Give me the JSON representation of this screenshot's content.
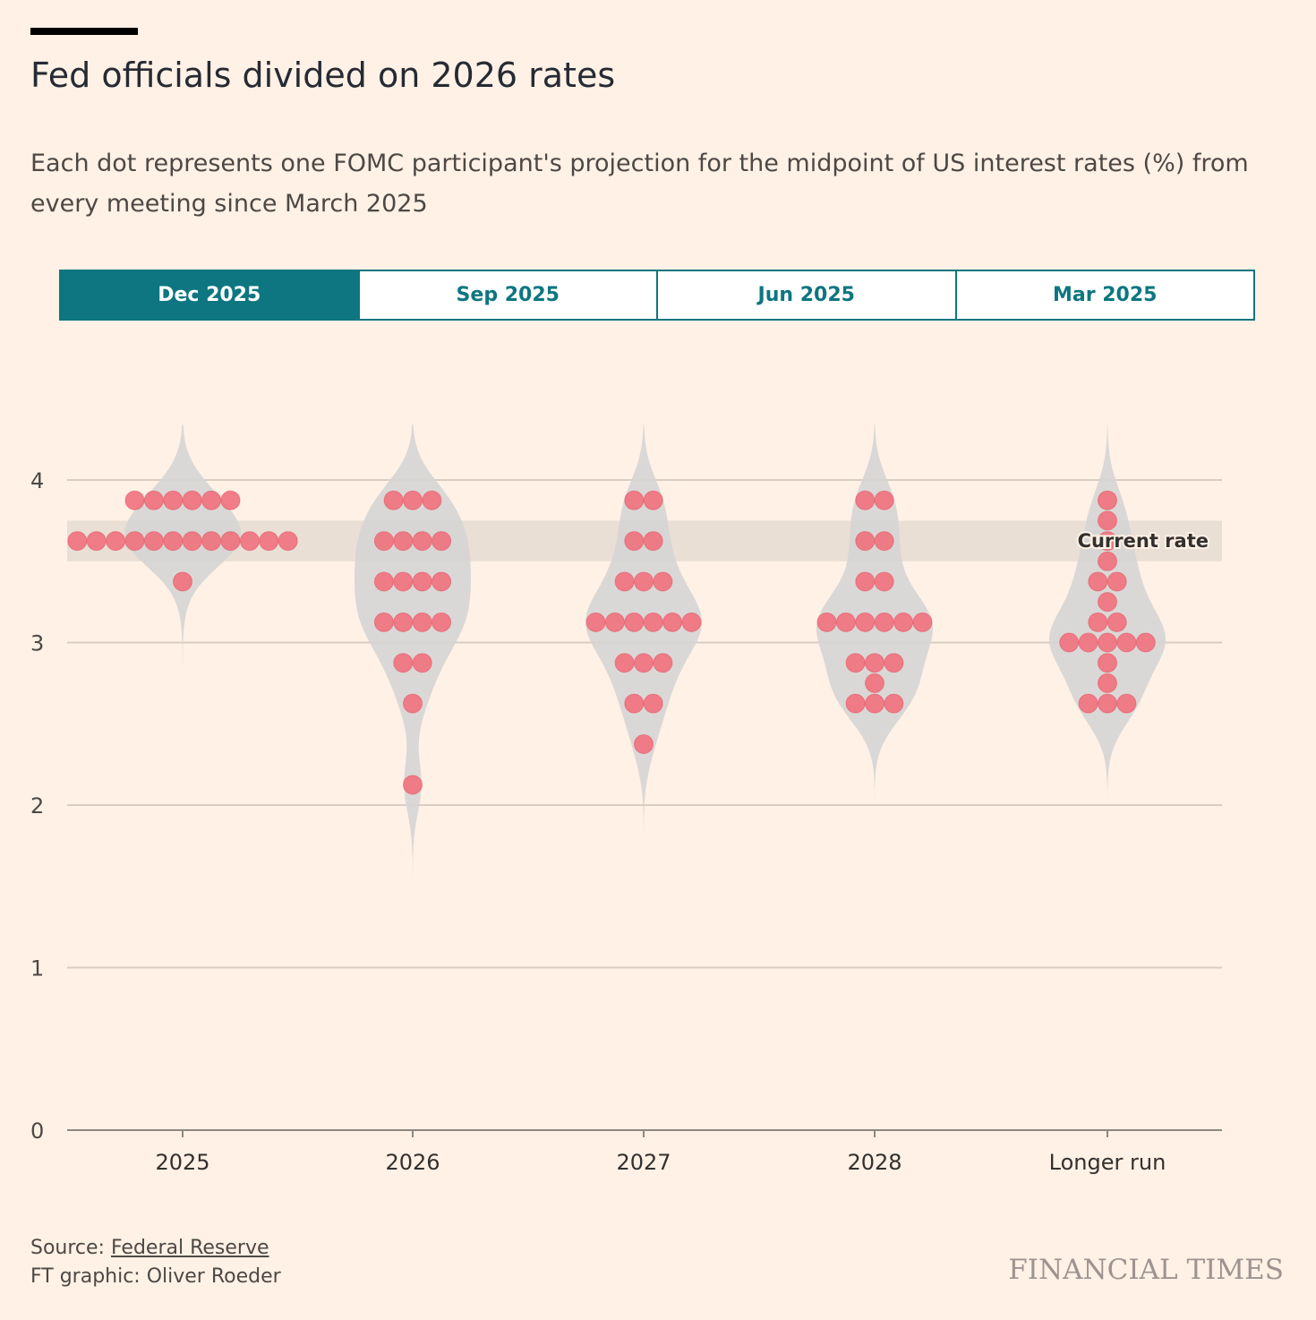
{
  "title": "Fed officials divided on 2026 rates",
  "subtitle": "Each dot represents one FOMC participant's projection for the midpoint of US interest rates (%) from every meeting since March 2025",
  "tabs": [
    {
      "label": "Dec 2025",
      "active": true
    },
    {
      "label": "Sep 2025",
      "active": false
    },
    {
      "label": "Jun 2025",
      "active": false
    },
    {
      "label": "Mar 2025",
      "active": false
    }
  ],
  "footer": {
    "source_prefix": "Source: ",
    "source_link": "Federal Reserve",
    "credit": "FT graphic: Oliver Roeder",
    "logo": "FINANCIAL TIMES"
  },
  "colors": {
    "dot": "#f0717d",
    "violin": "#d6d5d4",
    "band": "#e9dfd5",
    "accent": "#0d7680"
  },
  "chart_data": {
    "type": "scatter",
    "subtype": "dot plot with violin",
    "ylim": [
      0,
      4.3
    ],
    "yticks": [
      0,
      1,
      2,
      3,
      4
    ],
    "ytick_labels": [
      "0",
      "1",
      "2",
      "3",
      "4"
    ],
    "grid": true,
    "current_rate": {
      "label": "Current rate",
      "range": [
        3.5,
        3.75
      ]
    },
    "categories": [
      "2025",
      "2026",
      "2027",
      "2028",
      "Longer run"
    ],
    "series": [
      {
        "name": "2025",
        "values": [
          3.875,
          3.875,
          3.875,
          3.875,
          3.875,
          3.875,
          3.625,
          3.625,
          3.625,
          3.625,
          3.625,
          3.625,
          3.625,
          3.625,
          3.625,
          3.625,
          3.625,
          3.625,
          3.375
        ]
      },
      {
        "name": "2026",
        "values": [
          3.875,
          3.875,
          3.875,
          3.625,
          3.625,
          3.625,
          3.625,
          3.375,
          3.375,
          3.375,
          3.375,
          3.125,
          3.125,
          3.125,
          3.125,
          2.875,
          2.875,
          2.625,
          2.125
        ]
      },
      {
        "name": "2027",
        "values": [
          3.875,
          3.875,
          3.625,
          3.625,
          3.375,
          3.375,
          3.375,
          3.125,
          3.125,
          3.125,
          3.125,
          3.125,
          3.125,
          2.875,
          2.875,
          2.875,
          2.625,
          2.625,
          2.375
        ]
      },
      {
        "name": "2028",
        "values": [
          3.875,
          3.875,
          3.625,
          3.625,
          3.375,
          3.375,
          3.125,
          3.125,
          3.125,
          3.125,
          3.125,
          3.125,
          2.875,
          2.875,
          2.875,
          2.75,
          2.625,
          2.625,
          2.625
        ]
      },
      {
        "name": "Longer run",
        "values": [
          3.875,
          3.75,
          3.625,
          3.5,
          3.375,
          3.375,
          3.25,
          3.125,
          3.125,
          3.0,
          3.0,
          3.0,
          3.0,
          3.0,
          2.875,
          2.75,
          2.625,
          2.625,
          2.625
        ]
      }
    ]
  }
}
